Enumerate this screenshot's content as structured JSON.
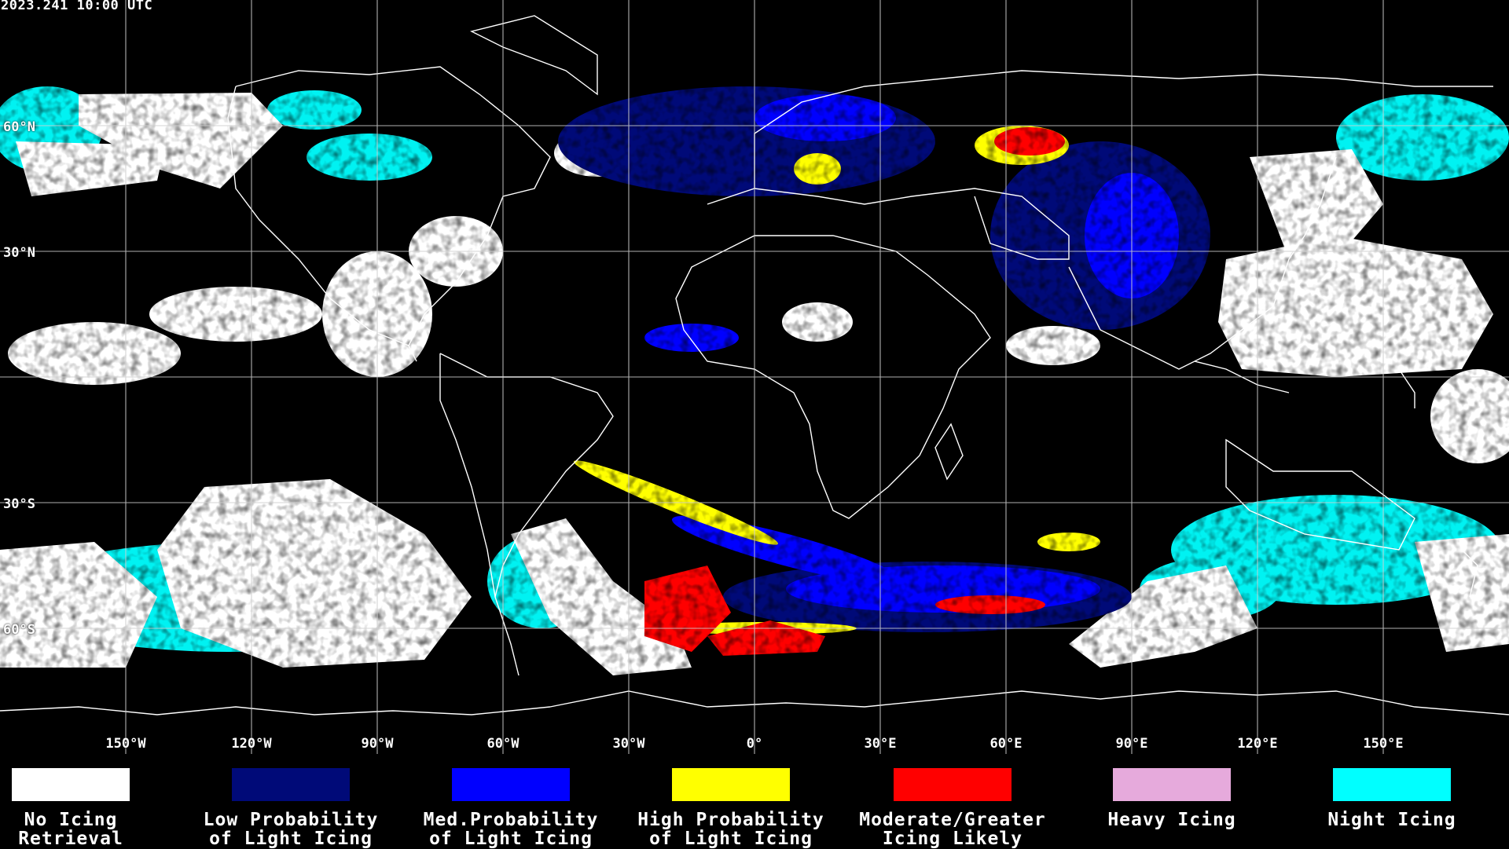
{
  "timestamp": "2023.241 10:00 UTC",
  "lat_labels": [
    "60°N",
    "30°N",
    "30°S",
    "60°S"
  ],
  "lon_labels": [
    "150°W",
    "120°W",
    "90°W",
    "60°W",
    "30°W",
    "0°",
    "30°E",
    "60°E",
    "90°E",
    "120°E",
    "150°E"
  ],
  "legend": [
    {
      "label": "No Icing\nRetrieval",
      "color": "#ffffff"
    },
    {
      "label": "Low Probability\nof Light Icing",
      "color": "#000a78"
    },
    {
      "label": "Med.Probability\nof Light Icing",
      "color": "#0000ff"
    },
    {
      "label": "High Probability\nof Light Icing",
      "color": "#ffff00"
    },
    {
      "label": "Moderate/Greater\nIcing Likely",
      "color": "#ff0000"
    },
    {
      "label": "Heavy Icing",
      "color": "#e6aadc"
    },
    {
      "label": "Night Icing",
      "color": "#00ffff"
    }
  ],
  "colors": {
    "background": "#000000",
    "coastline": "#ffffff",
    "graticule": "#d0d0d0"
  }
}
